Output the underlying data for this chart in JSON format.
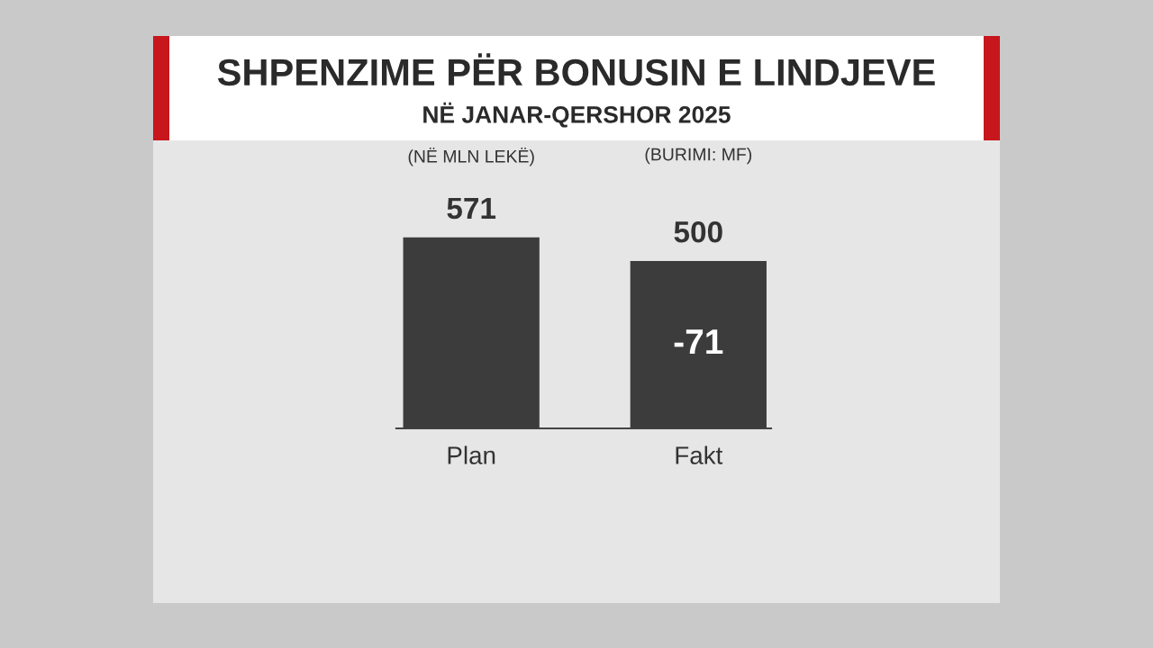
{
  "chart_data": {
    "type": "bar",
    "title": "SHPENZIME PËR BONUSIN E LINDJEVE",
    "subtitle": "NË JANAR-QERSHOR 2025",
    "categories": [
      "Plan",
      "Fakt"
    ],
    "values": [
      571,
      500
    ],
    "color": "#3c3c3c",
    "data_labels": true,
    "annotations": [
      "(NË MLN LEKË)",
      "(BURIMI: MF)",
      "-71"
    ]
  }
}
